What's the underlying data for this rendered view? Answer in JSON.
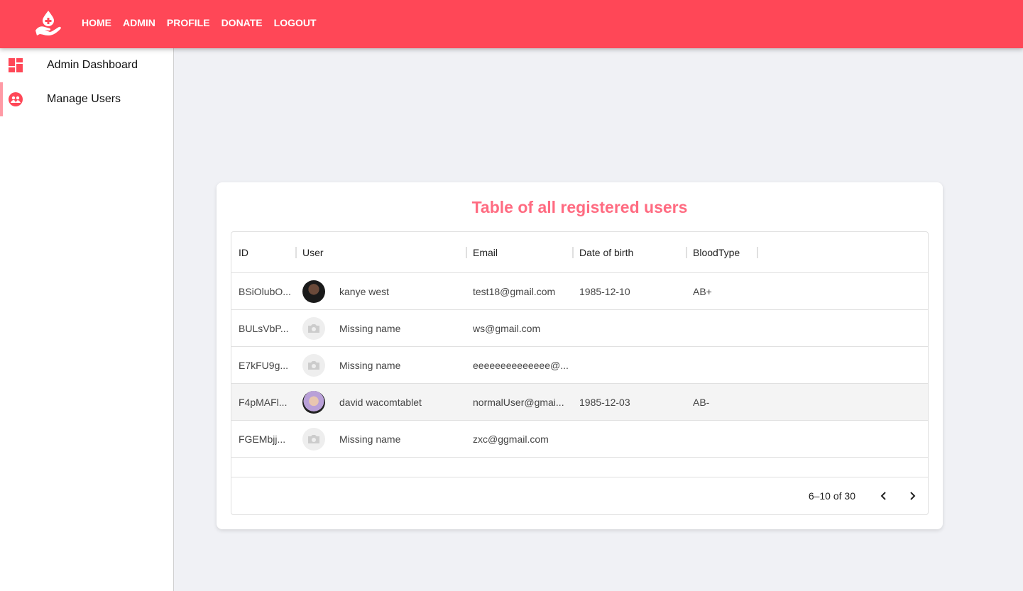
{
  "colors": {
    "brand": "#ff4757",
    "title": "#ff6b81",
    "background": "#f0f1f5"
  },
  "nav": {
    "items": [
      "HOME",
      "ADMIN",
      "PROFILE",
      "DONATE",
      "LOGOUT"
    ]
  },
  "sidebar": {
    "items": [
      {
        "label": "Admin Dashboard",
        "icon": "dashboard-icon"
      },
      {
        "label": "Manage Users",
        "icon": "group-icon",
        "active": true
      }
    ]
  },
  "card": {
    "title": "Table of all registered users"
  },
  "table": {
    "columns": [
      "ID",
      "User",
      "Email",
      "Date of birth",
      "BloodType"
    ],
    "rows": [
      {
        "id": "BSiOlubO...",
        "name": "kanye west",
        "email": "test18@gmail.com",
        "dob": "1985-12-10",
        "blood": "AB+",
        "avatar": "photo"
      },
      {
        "id": "BULsVbP...",
        "name": "Missing name",
        "email": "ws@gmail.com",
        "dob": "",
        "blood": "",
        "avatar": "placeholder"
      },
      {
        "id": "E7kFU9g...",
        "name": "Missing name",
        "email": "eeeeeeeeeeeeee@...",
        "dob": "",
        "blood": "",
        "avatar": "placeholder"
      },
      {
        "id": "F4pMAFl...",
        "name": "david wacomtablet",
        "email": "normalUser@gmai...",
        "dob": "1985-12-03",
        "blood": "AB-",
        "avatar": "photo",
        "selected": true
      },
      {
        "id": "FGEMbjj...",
        "name": "Missing name",
        "email": "zxc@ggmail.com",
        "dob": "",
        "blood": "",
        "avatar": "placeholder"
      }
    ],
    "pagination": "6–10 of 30"
  }
}
